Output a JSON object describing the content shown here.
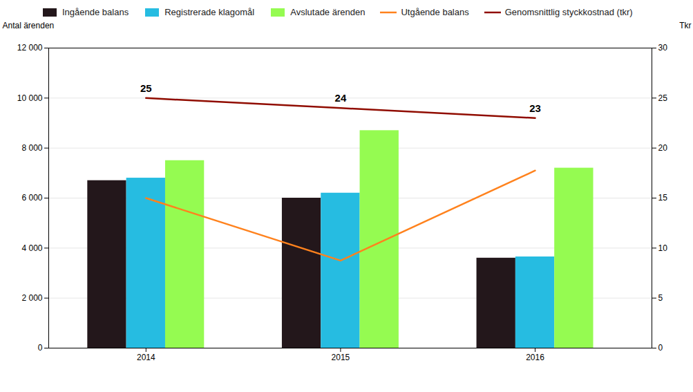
{
  "chart_data": {
    "type": "bar",
    "x": [
      2014,
      2015,
      2016
    ],
    "xlim": [
      2013.5,
      2016.6
    ],
    "xticks": [
      2014,
      2015,
      2016
    ],
    "ylabel": "Antal ärenden",
    "y2label": "Tkr",
    "ylim": [
      0,
      12000
    ],
    "yticks": [
      0,
      {
        "value": 2000,
        "label": "2 000"
      },
      {
        "value": 4000,
        "label": "4 000"
      },
      {
        "value": 6000,
        "label": "6 000"
      },
      {
        "value": 8000,
        "label": "8 000"
      },
      {
        "value": 10000,
        "label": "10 000"
      },
      {
        "value": 12000,
        "label": "12 000"
      }
    ],
    "y2lim": [
      0,
      30
    ],
    "y2ticks": [
      0,
      5,
      10,
      15,
      20,
      25,
      30
    ],
    "grid": true,
    "legend": "top",
    "series": [
      {
        "name": "Ingående balans",
        "type": "bar",
        "values": [
          6700,
          6000,
          3600
        ]
      },
      {
        "name": "Registrerade klagomål",
        "type": "bar",
        "values": [
          6800,
          6200,
          3650
        ]
      },
      {
        "name": "Avslutade ärenden",
        "type": "bar",
        "values": [
          7500,
          8700,
          7200
        ]
      },
      {
        "name": "Utgående balans",
        "type": "line",
        "values": [
          6000,
          3500,
          7100
        ]
      },
      {
        "name": "Genomsnittlig styckkostnad (tkr)",
        "type": "line",
        "axis": "y2",
        "values": [
          25,
          24,
          23
        ],
        "data_labels": true
      }
    ]
  }
}
